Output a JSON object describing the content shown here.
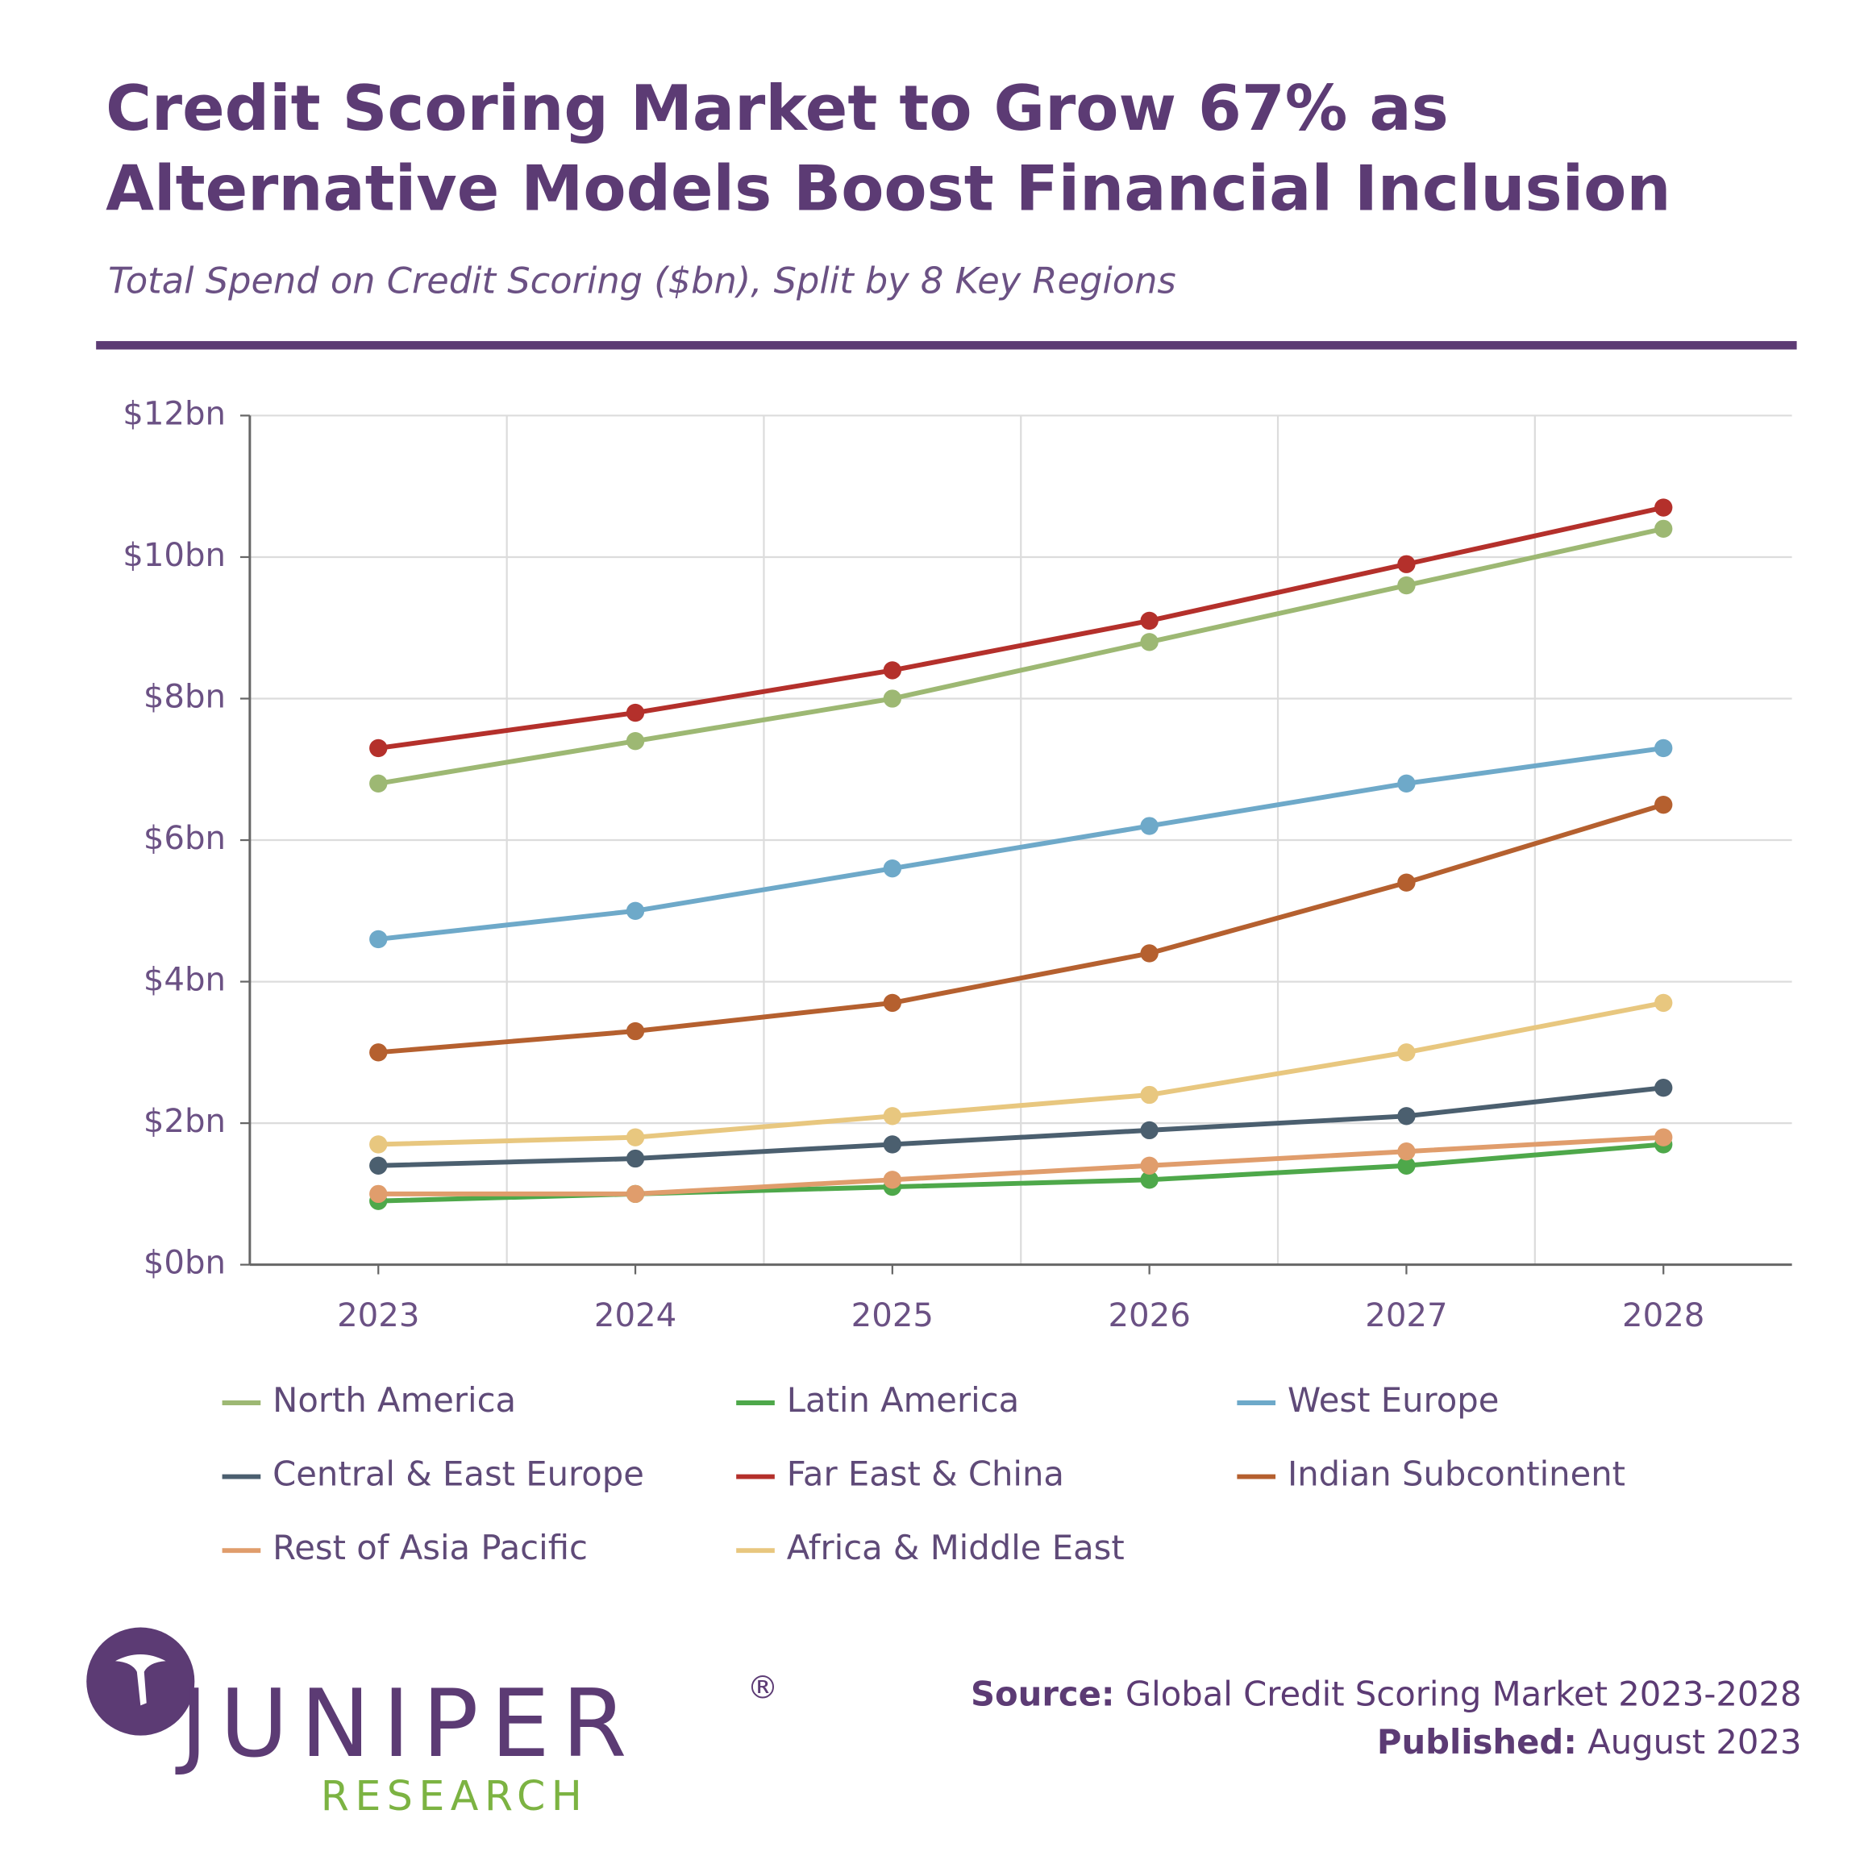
{
  "chart_data": {
    "type": "line",
    "title": [
      "Credit Scoring Market to Grow 67% as",
      "Alternative Models Boost Financial Inclusion"
    ],
    "subtitle": "Total Spend on Credit Scoring ($bn), Split by 8 Key Regions",
    "categories": [
      "2023",
      "2024",
      "2025",
      "2026",
      "2027",
      "2028"
    ],
    "ylim": [
      0,
      12
    ],
    "yticks": [
      {
        "value": 0,
        "label": "$0bn"
      },
      {
        "value": 2,
        "label": "$2bn"
      },
      {
        "value": 4,
        "label": "$4bn"
      },
      {
        "value": 6,
        "label": "$6bn"
      },
      {
        "value": 8,
        "label": "$8bn"
      },
      {
        "value": 10,
        "label": "$10bn"
      },
      {
        "value": 12,
        "label": "$12bn"
      }
    ],
    "grid": true,
    "legend": "bottom",
    "series": [
      {
        "name": "North America",
        "color": "#9db873",
        "values": [
          6.8,
          7.4,
          8.0,
          8.8,
          9.6,
          10.4
        ]
      },
      {
        "name": "Latin America",
        "color": "#4ea84a",
        "values": [
          0.9,
          1.0,
          1.1,
          1.2,
          1.4,
          1.7
        ]
      },
      {
        "name": "West Europe",
        "color": "#6ea9c9",
        "values": [
          4.6,
          5.0,
          5.6,
          6.2,
          6.8,
          7.3
        ]
      },
      {
        "name": "Central & East Europe",
        "color": "#4b5f6f",
        "values": [
          1.4,
          1.5,
          1.7,
          1.9,
          2.1,
          2.5
        ]
      },
      {
        "name": "Far East & China",
        "color": "#b4302b",
        "values": [
          7.3,
          7.8,
          8.4,
          9.1,
          9.9,
          10.7
        ]
      },
      {
        "name": "Indian Subcontinent",
        "color": "#b5602f",
        "values": [
          3.0,
          3.3,
          3.7,
          4.4,
          5.4,
          6.5
        ]
      },
      {
        "name": "Rest of Asia Pacific",
        "color": "#e09d6c",
        "values": [
          1.0,
          1.0,
          1.2,
          1.4,
          1.6,
          1.8
        ]
      },
      {
        "name": "Africa & Middle East",
        "color": "#e8c77f",
        "values": [
          1.7,
          1.8,
          2.1,
          2.4,
          3.0,
          3.7
        ]
      }
    ]
  },
  "footer": {
    "source_label": "Source:",
    "source": "Global Credit Scoring Market 2023-2028",
    "published_label": "Published:",
    "published": "August 2023"
  },
  "logo": {
    "name": "JUNIPER",
    "mark": "®",
    "sub": "RESEARCH"
  }
}
